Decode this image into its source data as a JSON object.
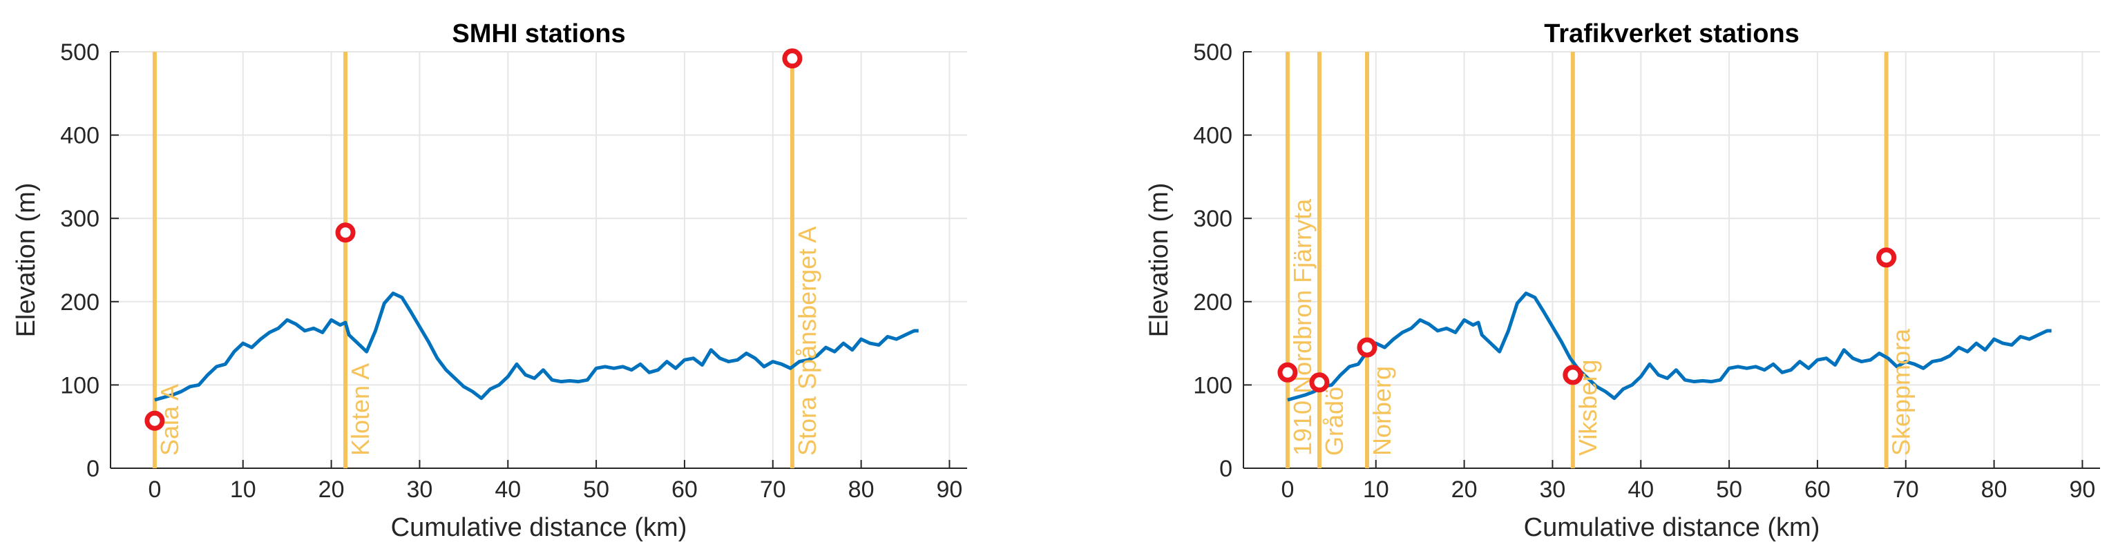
{
  "chart_data": [
    {
      "type": "line",
      "title": "SMHI stations",
      "xlabel": "Cumulative distance (km)",
      "ylabel": "Elevation (m)",
      "xlim": [
        -5,
        92
      ],
      "ylim": [
        0,
        500
      ],
      "xticks": [
        0,
        10,
        20,
        30,
        40,
        50,
        60,
        70,
        80,
        90
      ],
      "yticks": [
        0,
        100,
        200,
        300,
        400,
        500
      ],
      "grid": true,
      "colors": {
        "profile": "#0072BD",
        "station_line": "#F5C35A",
        "marker_edge": "#E8181E",
        "marker_face": "#FFFFFF"
      },
      "profile": {
        "x": [
          0,
          1,
          2,
          3,
          4,
          5,
          6,
          7,
          8,
          9,
          10,
          11,
          12,
          13,
          14,
          15,
          16,
          17,
          18,
          19,
          20,
          21,
          21.6,
          22,
          23,
          24,
          25,
          26,
          27,
          28,
          29,
          30,
          31,
          32,
          33,
          34,
          35,
          36,
          37,
          38,
          39,
          40,
          41,
          42,
          43,
          44,
          45,
          46,
          47,
          48,
          49,
          50,
          51,
          52,
          53,
          54,
          55,
          56,
          57,
          58,
          59,
          60,
          61,
          62,
          63,
          64,
          65,
          66,
          67,
          68,
          69,
          70,
          71,
          72,
          73,
          74,
          75,
          76,
          77,
          78,
          79,
          80,
          81,
          82,
          83,
          84,
          85,
          86,
          86.5
        ],
        "y": [
          82,
          85,
          88,
          92,
          98,
          100,
          112,
          122,
          125,
          140,
          150,
          145,
          155,
          163,
          168,
          178,
          173,
          165,
          168,
          163,
          178,
          172,
          175,
          160,
          150,
          140,
          165,
          198,
          210,
          205,
          188,
          170,
          152,
          132,
          118,
          108,
          98,
          92,
          84,
          95,
          100,
          110,
          125,
          112,
          108,
          118,
          106,
          104,
          105,
          104,
          106,
          120,
          122,
          120,
          122,
          118,
          125,
          115,
          118,
          128,
          120,
          130,
          132,
          124,
          142,
          132,
          128,
          130,
          138,
          132,
          122,
          128,
          125,
          120,
          128,
          130,
          135,
          145,
          140,
          150,
          142,
          155,
          150,
          148,
          158,
          155,
          160,
          165,
          165
        ]
      },
      "stations": [
        {
          "name": "Sala A",
          "x": 0,
          "elevation": 57
        },
        {
          "name": "Kloten A",
          "x": 21.6,
          "elevation": 283
        },
        {
          "name": "Stora Spånsberget A",
          "x": 72.2,
          "elevation": 492
        }
      ]
    },
    {
      "type": "line",
      "title": "Trafikverket stations",
      "xlabel": "Cumulative distance (km)",
      "ylabel": "Elevation (m)",
      "xlim": [
        -5,
        92
      ],
      "ylim": [
        0,
        500
      ],
      "xticks": [
        0,
        10,
        20,
        30,
        40,
        50,
        60,
        70,
        80,
        90
      ],
      "yticks": [
        0,
        100,
        200,
        300,
        400,
        500
      ],
      "grid": true,
      "colors": {
        "profile": "#0072BD",
        "station_line": "#F5C35A",
        "marker_edge": "#E8181E",
        "marker_face": "#FFFFFF"
      },
      "profile": {
        "x": [
          0,
          1,
          2,
          3,
          4,
          5,
          6,
          7,
          8,
          9,
          10,
          11,
          12,
          13,
          14,
          15,
          16,
          17,
          18,
          19,
          20,
          21,
          21.6,
          22,
          23,
          24,
          25,
          26,
          27,
          28,
          29,
          30,
          31,
          32,
          33,
          34,
          35,
          36,
          37,
          38,
          39,
          40,
          41,
          42,
          43,
          44,
          45,
          46,
          47,
          48,
          49,
          50,
          51,
          52,
          53,
          54,
          55,
          56,
          57,
          58,
          59,
          60,
          61,
          62,
          63,
          64,
          65,
          66,
          67,
          68,
          69,
          70,
          71,
          72,
          73,
          74,
          75,
          76,
          77,
          78,
          79,
          80,
          81,
          82,
          83,
          84,
          85,
          86,
          86.5
        ],
        "y": [
          82,
          85,
          88,
          92,
          98,
          100,
          112,
          122,
          125,
          140,
          150,
          145,
          155,
          163,
          168,
          178,
          173,
          165,
          168,
          163,
          178,
          172,
          175,
          160,
          150,
          140,
          165,
          198,
          210,
          205,
          188,
          170,
          152,
          132,
          118,
          108,
          98,
          92,
          84,
          95,
          100,
          110,
          125,
          112,
          108,
          118,
          106,
          104,
          105,
          104,
          106,
          120,
          122,
          120,
          122,
          118,
          125,
          115,
          118,
          128,
          120,
          130,
          132,
          124,
          142,
          132,
          128,
          130,
          138,
          132,
          122,
          128,
          125,
          120,
          128,
          130,
          135,
          145,
          140,
          150,
          142,
          155,
          150,
          148,
          158,
          155,
          160,
          165,
          165
        ]
      },
      "stations": [
        {
          "name": "1910 Nordbron Fjärryta",
          "x": 0,
          "elevation": 115
        },
        {
          "name": "Grådö",
          "x": 3.6,
          "elevation": 103
        },
        {
          "name": "Norberg",
          "x": 9,
          "elevation": 145
        },
        {
          "name": "Viksberg",
          "x": 32.3,
          "elevation": 112
        },
        {
          "name": "Skeppmora",
          "x": 67.8,
          "elevation": 253
        }
      ]
    }
  ]
}
